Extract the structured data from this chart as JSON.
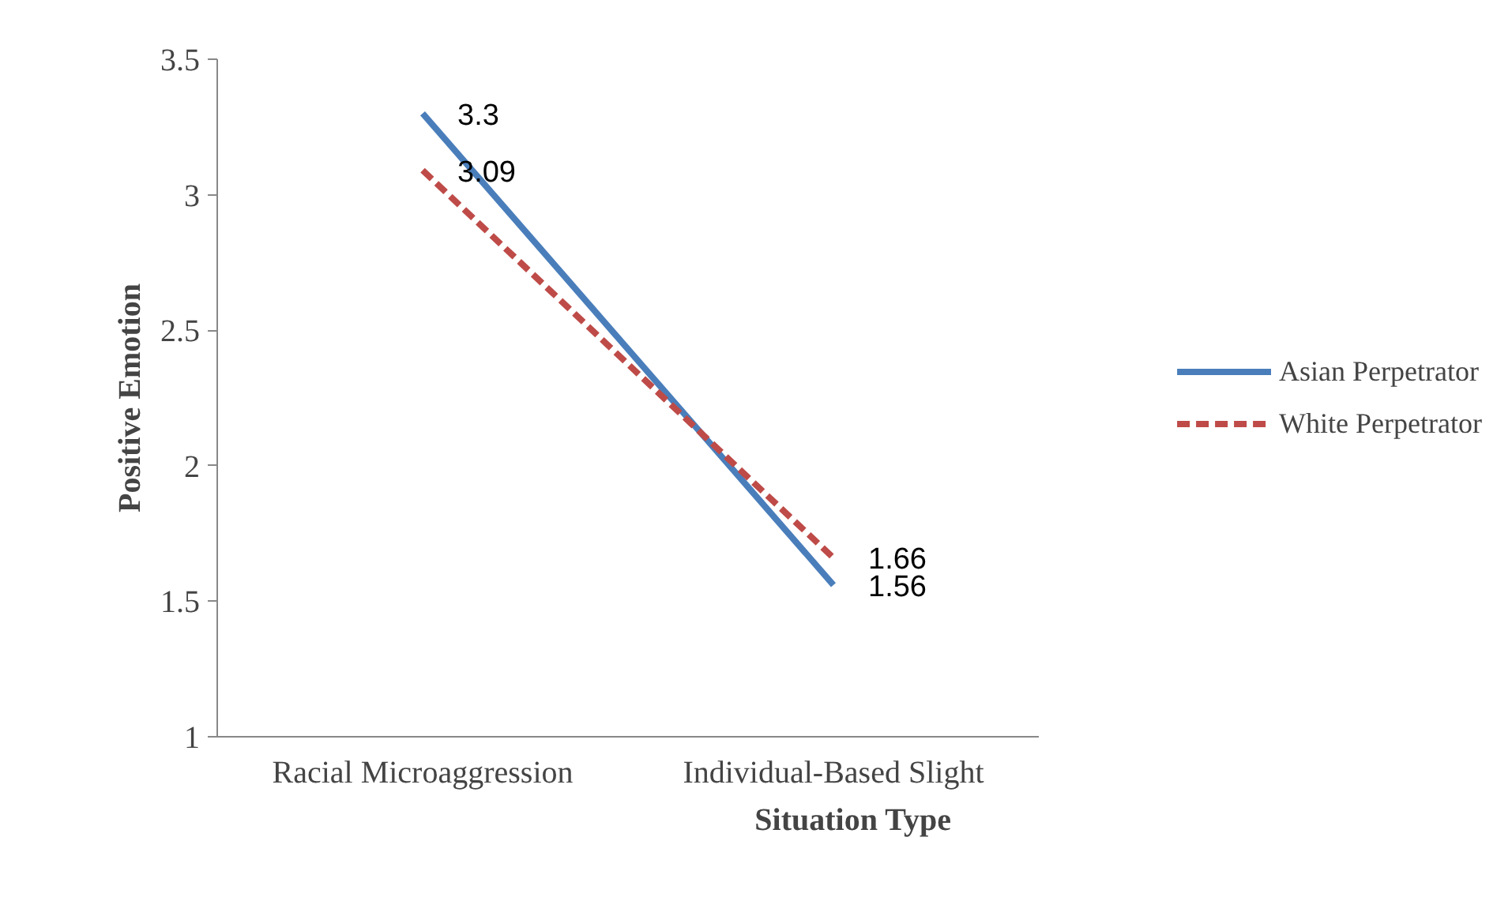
{
  "chart_data": {
    "type": "line",
    "xlabel": "Situation Type",
    "ylabel": "Positive Emotion",
    "categories": [
      "Racial Microaggression",
      "Individual-Based Slight"
    ],
    "series": [
      {
        "name": "Asian Perpetrator",
        "color": "#4a7ebb",
        "values": [
          3.3,
          1.56
        ],
        "line_style": "solid"
      },
      {
        "name": "White Perpetrator",
        "color": "#be4b48",
        "values": [
          3.09,
          1.66
        ],
        "line_style": "dashed"
      }
    ],
    "ylim": [
      1,
      3.5
    ],
    "yticks": [
      1,
      1.5,
      2,
      2.5,
      3,
      3.5
    ],
    "grid": false,
    "legend": "right",
    "marker": "none",
    "data_labels": true
  }
}
